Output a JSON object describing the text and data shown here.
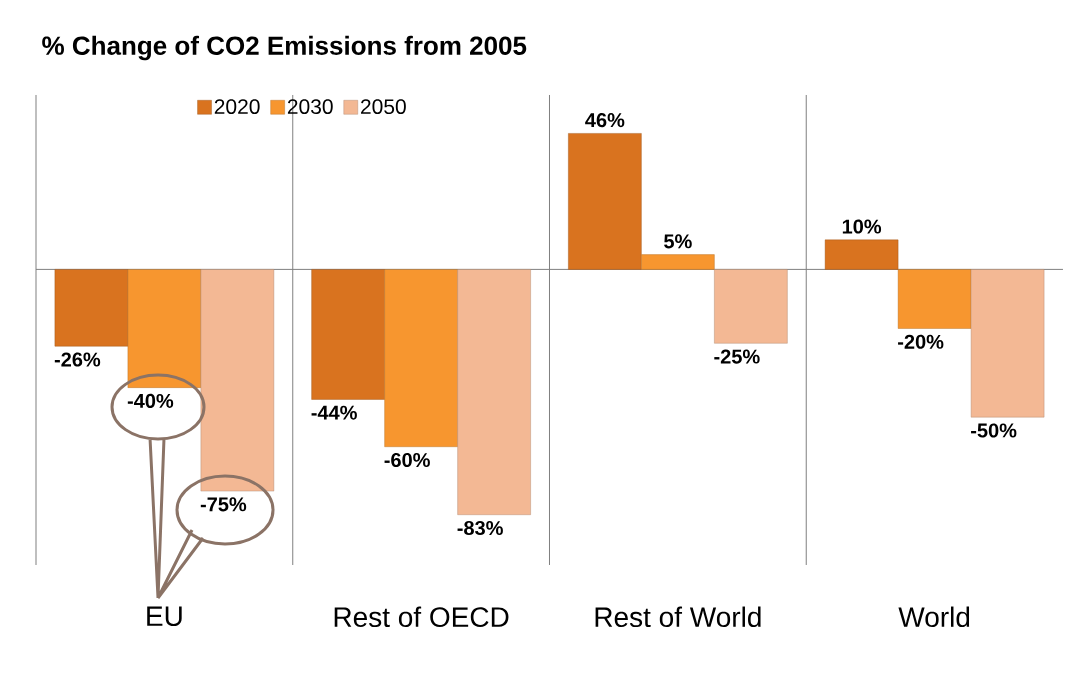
{
  "chart_data": {
    "type": "bar",
    "title": "% Change of CO2 Emissions from 2005",
    "categories": [
      "EU",
      "Rest of OECD",
      "Rest of World",
      "World"
    ],
    "series": [
      {
        "name": "2020",
        "color": "#d9731f",
        "values": [
          -26,
          -44,
          46,
          10
        ],
        "value_labels": [
          "-26%",
          "-44%",
          "46%",
          "10%"
        ]
      },
      {
        "name": "2030",
        "color": "#f7962f",
        "values": [
          -40,
          -60,
          5,
          -20
        ],
        "value_labels": [
          "-40%",
          "-60%",
          "5%",
          "-20%"
        ]
      },
      {
        "name": "2050",
        "color": "#f3b894",
        "values": [
          -75,
          -83,
          -25,
          -50
        ],
        "value_labels": [
          "-75%",
          "-83%",
          "-25%",
          "-50%"
        ]
      }
    ],
    "ylim": [
      -100,
      59
    ],
    "grid": "x",
    "legend": "top"
  }
}
